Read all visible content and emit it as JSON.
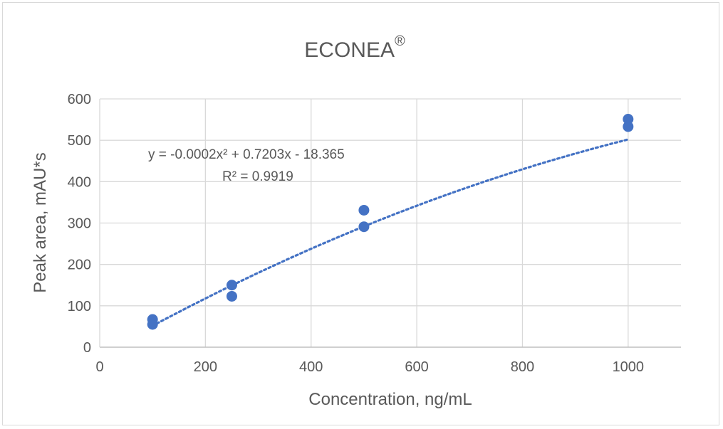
{
  "chart_data": {
    "type": "scatter",
    "title": "ECONEA",
    "title_superscript": "®",
    "xlabel": "Concentration, ng/mL",
    "ylabel": "Peak area, mAU*s",
    "xlim": [
      0,
      1100
    ],
    "ylim": [
      0,
      600
    ],
    "x_ticks": [
      0,
      200,
      400,
      600,
      800,
      1000
    ],
    "y_ticks": [
      0,
      100,
      200,
      300,
      400,
      500,
      600
    ],
    "grid": true,
    "legend": "none",
    "series": [
      {
        "color": "#4472c4",
        "points": [
          {
            "x": 100,
            "y": 67
          },
          {
            "x": 100,
            "y": 55
          },
          {
            "x": 250,
            "y": 150
          },
          {
            "x": 250,
            "y": 123
          },
          {
            "x": 500,
            "y": 331
          },
          {
            "x": 500,
            "y": 291
          },
          {
            "x": 1000,
            "y": 551
          },
          {
            "x": 1000,
            "y": 533
          }
        ]
      }
    ],
    "trendline": {
      "type": "polynomial",
      "order": 2,
      "coefficients": {
        "a": -0.0002,
        "b": 0.7203,
        "c": -18.365
      },
      "x_range": [
        100,
        1000
      ],
      "style": "dotted",
      "color": "#4472c4"
    },
    "annotations": {
      "equation": "y = -0.0002x² + 0.7203x - 18.365",
      "r_squared": "R² = 0.9919"
    }
  }
}
